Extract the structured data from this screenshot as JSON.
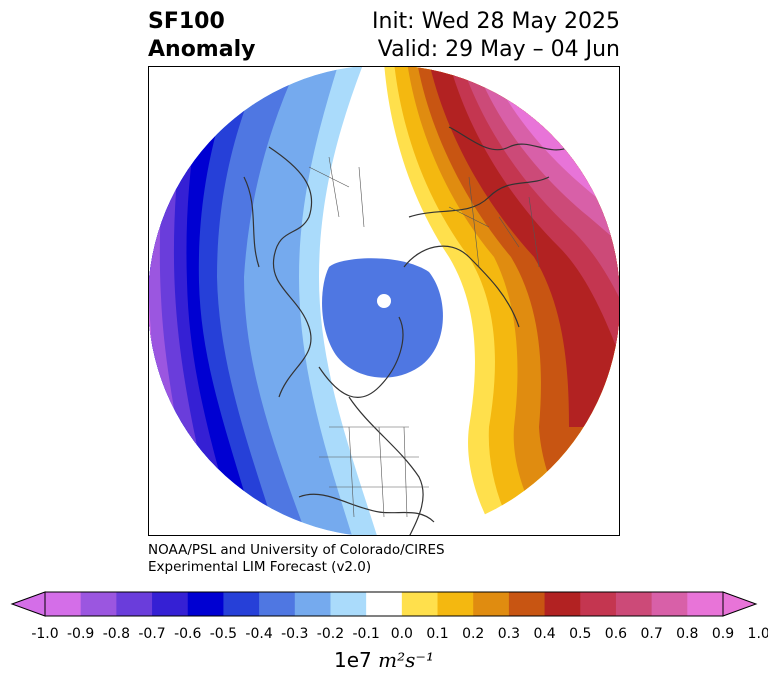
{
  "header": {
    "title_line1": "SF100",
    "title_line2": "Anomaly",
    "init_line": "Init: Wed 28 May 2025",
    "valid_line": "Valid: 29 May – 04 Jun"
  },
  "credit": {
    "line1": "NOAA/PSL and University of Colorado/CIRES",
    "line2": "Experimental LIM Forecast (v2.0)"
  },
  "colorbar": {
    "label_prefix": "1e7 ",
    "label_unit": "m²s⁻¹",
    "ticks": [
      "-1.0",
      "-0.9",
      "-0.8",
      "-0.7",
      "-0.6",
      "-0.5",
      "-0.4",
      "-0.3",
      "-0.2",
      "-0.1",
      "0.0",
      "0.1",
      "0.2",
      "0.3",
      "0.4",
      "0.5",
      "0.6",
      "0.7",
      "0.8",
      "0.9",
      "1.0"
    ],
    "colors": [
      "#d46ee8",
      "#9b56e0",
      "#6a3ddb",
      "#3520d4",
      "#0000d2",
      "#2640d8",
      "#4f77e2",
      "#75aaee",
      "#aadbfb",
      "#ffffff",
      "#ffe04c",
      "#f4b810",
      "#e08c10",
      "#c85512",
      "#b22222",
      "#c43650",
      "#cc4a78",
      "#d860a8",
      "#e874d8"
    ]
  },
  "map": {
    "projection": "north polar stereographic",
    "colors": {
      "strong_negative": "#0000d2",
      "strong_positive": "#b22222",
      "max_positive": "#e874d8",
      "max_negative": "#d46ee8"
    }
  }
}
